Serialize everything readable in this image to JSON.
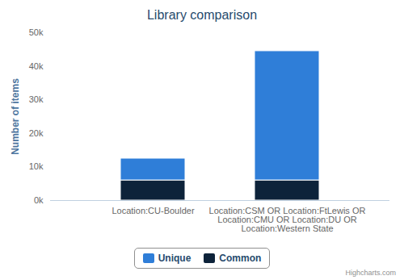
{
  "chart_data": {
    "type": "bar",
    "title": "Library comparison",
    "categories": [
      "Location:CU-Boulder",
      "Location:CSM OR Location:FtLewis OR Location:CMU OR Location:DU OR Location:Western State"
    ],
    "series": [
      {
        "name": "Unique",
        "color": "#2f7ed8",
        "values": [
          6500,
          38500
        ]
      },
      {
        "name": "Common",
        "color": "#0d233a",
        "values": [
          6000,
          6000
        ]
      }
    ],
    "y_label": "Number of items",
    "ylim": [
      0,
      50000
    ],
    "yticks": [
      {
        "value": 0,
        "label": "0k"
      },
      {
        "value": 10000,
        "label": "10k"
      },
      {
        "value": 20000,
        "label": "20k"
      },
      {
        "value": 30000,
        "label": "30k"
      },
      {
        "value": 40000,
        "label": "40k"
      },
      {
        "value": 50000,
        "label": "50k"
      }
    ],
    "stacked": true,
    "grid": true,
    "legend": "bottom",
    "credits": "Highcharts.com"
  }
}
